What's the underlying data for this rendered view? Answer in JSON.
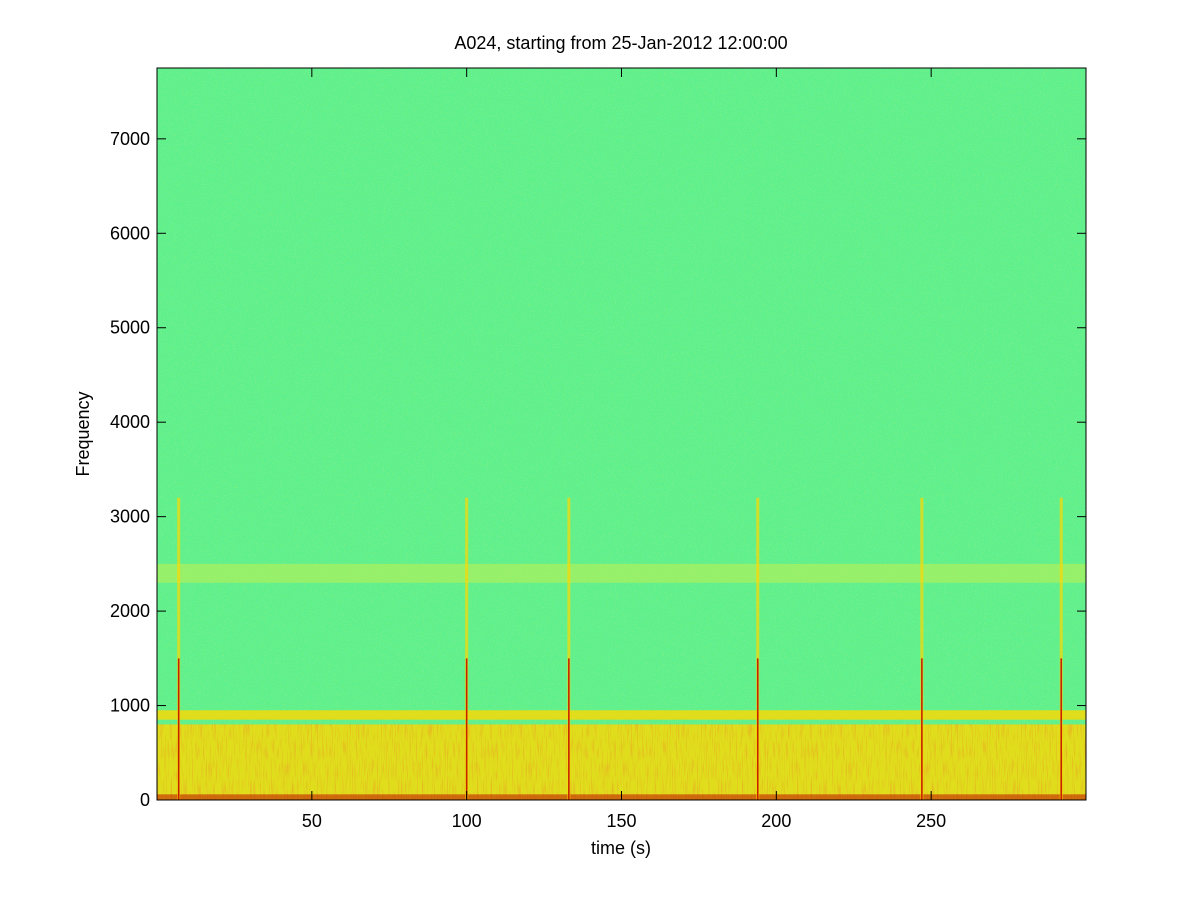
{
  "chart_data": {
    "type": "heatmap",
    "title": "A024, starting from 25-Jan-2012 12:00:00",
    "xlabel": "time (s)",
    "ylabel": "Frequency",
    "xlim": [
      0,
      300
    ],
    "ylim": [
      0,
      7750
    ],
    "x_ticks": [
      50,
      100,
      150,
      200,
      250
    ],
    "y_ticks": [
      0,
      1000,
      2000,
      3000,
      4000,
      5000,
      6000,
      7000
    ],
    "x_tick_labels": [
      "50",
      "100",
      "150",
      "200",
      "250"
    ],
    "y_tick_labels": [
      "0",
      "1000",
      "2000",
      "3000",
      "4000",
      "5000",
      "6000",
      "7000"
    ],
    "grid": false,
    "colormap": "jet",
    "background_level_color": "#5ff08c",
    "broadband_events_time_s": [
      7,
      100,
      133,
      194,
      247,
      292
    ],
    "horizontal_bands_frequency_hz": [
      {
        "from": 2300,
        "to": 2500,
        "level": "medium"
      },
      {
        "from": 850,
        "to": 950,
        "level": "high"
      },
      {
        "from": 0,
        "to": 800,
        "level": "high"
      }
    ],
    "colors": {
      "low": "#3fd8c8",
      "background": "#5ff08c",
      "medium": "#d8f040",
      "high": "#ffd800",
      "peak": "#c01000"
    }
  }
}
